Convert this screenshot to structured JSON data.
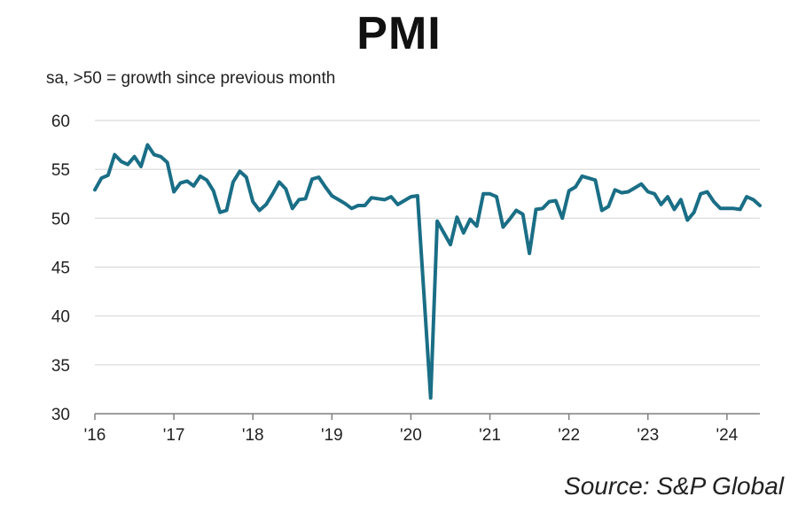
{
  "title": "PMI",
  "subtitle": "sa, >50 = growth since previous month",
  "source": "Source: S&P Global",
  "colors": {
    "line": "#1a6e86",
    "grid": "#d9d9d9",
    "axis": "#7f7f7f"
  },
  "chart_data": {
    "type": "line",
    "title": "PMI",
    "subtitle": "sa, >50 = growth since previous month",
    "xlabel": "",
    "ylabel": "",
    "ylim": [
      30,
      60
    ],
    "xlim": [
      "2016-01",
      "2024-06"
    ],
    "yticks": [
      "30",
      "35",
      "40",
      "45",
      "50",
      "55",
      "60"
    ],
    "xticks": [
      {
        "label": "'16",
        "x": "2016-01"
      },
      {
        "label": "'17",
        "x": "2017-01"
      },
      {
        "label": "'18",
        "x": "2018-01"
      },
      {
        "label": "'19",
        "x": "2019-01"
      },
      {
        "label": "'20",
        "x": "2020-01"
      },
      {
        "label": "'21",
        "x": "2021-01"
      },
      {
        "label": "'22",
        "x": "2022-01"
      },
      {
        "label": "'23",
        "x": "2023-01"
      },
      {
        "label": "'24",
        "x": "2024-01"
      }
    ],
    "grid": true,
    "series": [
      {
        "x": [
          "2016-01",
          "2016-02",
          "2016-03",
          "2016-04",
          "2016-05",
          "2016-06",
          "2016-07",
          "2016-08",
          "2016-09",
          "2016-10",
          "2016-11",
          "2016-12",
          "2017-01",
          "2017-02",
          "2017-03",
          "2017-04",
          "2017-05",
          "2017-06",
          "2017-07",
          "2017-08",
          "2017-09",
          "2017-10",
          "2017-11",
          "2017-12",
          "2018-01",
          "2018-02",
          "2018-03",
          "2018-04",
          "2018-05",
          "2018-06",
          "2018-07",
          "2018-08",
          "2018-09",
          "2018-10",
          "2018-11",
          "2018-12",
          "2019-01",
          "2019-02",
          "2019-03",
          "2019-04",
          "2019-05",
          "2019-06",
          "2019-07",
          "2019-08",
          "2019-09",
          "2019-10",
          "2019-11",
          "2019-12",
          "2020-01",
          "2020-02",
          "2020-03",
          "2020-04",
          "2020-05",
          "2020-06",
          "2020-07",
          "2020-08",
          "2020-09",
          "2020-10",
          "2020-11",
          "2020-12",
          "2021-01",
          "2021-02",
          "2021-03",
          "2021-04",
          "2021-05",
          "2021-06",
          "2021-07",
          "2021-08",
          "2021-09",
          "2021-10",
          "2021-11",
          "2021-12",
          "2022-01",
          "2022-02",
          "2022-03",
          "2022-04",
          "2022-05",
          "2022-06",
          "2022-07",
          "2022-08",
          "2022-09",
          "2022-10",
          "2022-11",
          "2022-12",
          "2023-01",
          "2023-02",
          "2023-03",
          "2023-04",
          "2023-05",
          "2023-06",
          "2023-07",
          "2023-08",
          "2023-09",
          "2023-10",
          "2023-11",
          "2023-12",
          "2024-01",
          "2024-02",
          "2024-03",
          "2024-04",
          "2024-05",
          "2024-06"
        ],
        "values": [
          52.9,
          54.1,
          54.4,
          56.5,
          55.8,
          55.5,
          56.3,
          55.3,
          57.5,
          56.5,
          56.3,
          55.7,
          52.7,
          53.6,
          53.8,
          53.3,
          54.3,
          53.9,
          52.8,
          50.6,
          50.8,
          53.7,
          54.8,
          54.2,
          51.7,
          50.8,
          51.4,
          52.5,
          53.7,
          53.0,
          51.0,
          51.9,
          52.0,
          54.0,
          54.2,
          53.2,
          52.3,
          51.9,
          51.5,
          51.0,
          51.3,
          51.3,
          52.1,
          52.0,
          51.9,
          52.2,
          51.4,
          51.8,
          52.2,
          52.3,
          42.0,
          31.6,
          49.7,
          48.5,
          47.3,
          50.1,
          48.5,
          49.9,
          49.2,
          52.5,
          52.5,
          52.2,
          49.1,
          49.9,
          50.8,
          50.4,
          46.4,
          50.9,
          51.0,
          51.7,
          51.8,
          50.0,
          52.8,
          53.2,
          54.3,
          54.1,
          53.9,
          50.8,
          51.2,
          52.9,
          52.6,
          52.7,
          53.1,
          53.5,
          52.7,
          52.5,
          51.4,
          52.2,
          50.9,
          51.9,
          49.8,
          50.6,
          52.5,
          52.7,
          51.7,
          51.0,
          51.0,
          51.0,
          50.9,
          52.2,
          51.9,
          51.3
        ]
      }
    ]
  }
}
